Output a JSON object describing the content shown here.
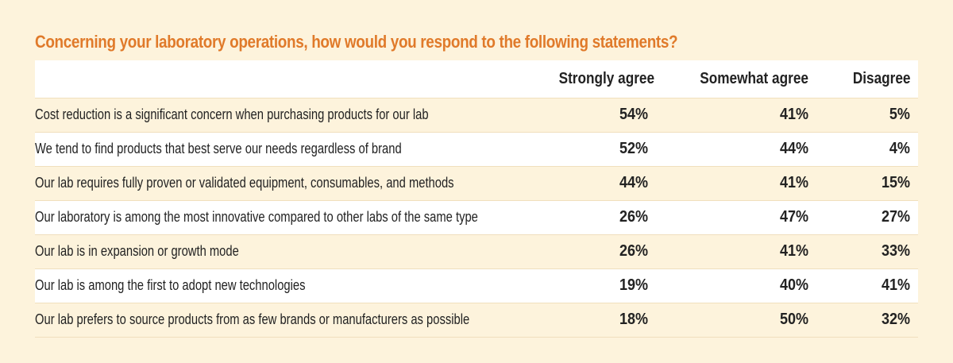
{
  "chart_data": {
    "type": "table",
    "title": "Concerning your laboratory operations, how would you respond to the following statements?",
    "columns": [
      "Strongly agree",
      "Somewhat agree",
      "Disagree"
    ],
    "rows": [
      {
        "statement": "Cost reduction is a significant concern when purchasing products for our lab",
        "values": [
          "54%",
          "41%",
          "5%"
        ]
      },
      {
        "statement": "We tend to find products that best serve our needs regardless of brand",
        "values": [
          "52%",
          "44%",
          "4%"
        ]
      },
      {
        "statement": "Our lab requires fully proven or validated equipment, consumables, and methods",
        "values": [
          "44%",
          "41%",
          "15%"
        ]
      },
      {
        "statement": "Our laboratory is among the most innovative compared to other labs of the same type",
        "values": [
          "26%",
          "47%",
          "27%"
        ]
      },
      {
        "statement": "Our lab is in expansion or growth mode",
        "values": [
          "26%",
          "41%",
          "33%"
        ]
      },
      {
        "statement": "Our lab is among the first to adopt new technologies",
        "values": [
          "19%",
          "40%",
          "41%"
        ]
      },
      {
        "statement": "Our lab prefers to source products from as few brands or manufacturers as possible",
        "values": [
          "18%",
          "50%",
          "32%"
        ]
      }
    ]
  },
  "colors": {
    "title": "#e07a2a",
    "background": "#fdf3dc",
    "stripe": "#ffffff",
    "text": "#222222"
  }
}
